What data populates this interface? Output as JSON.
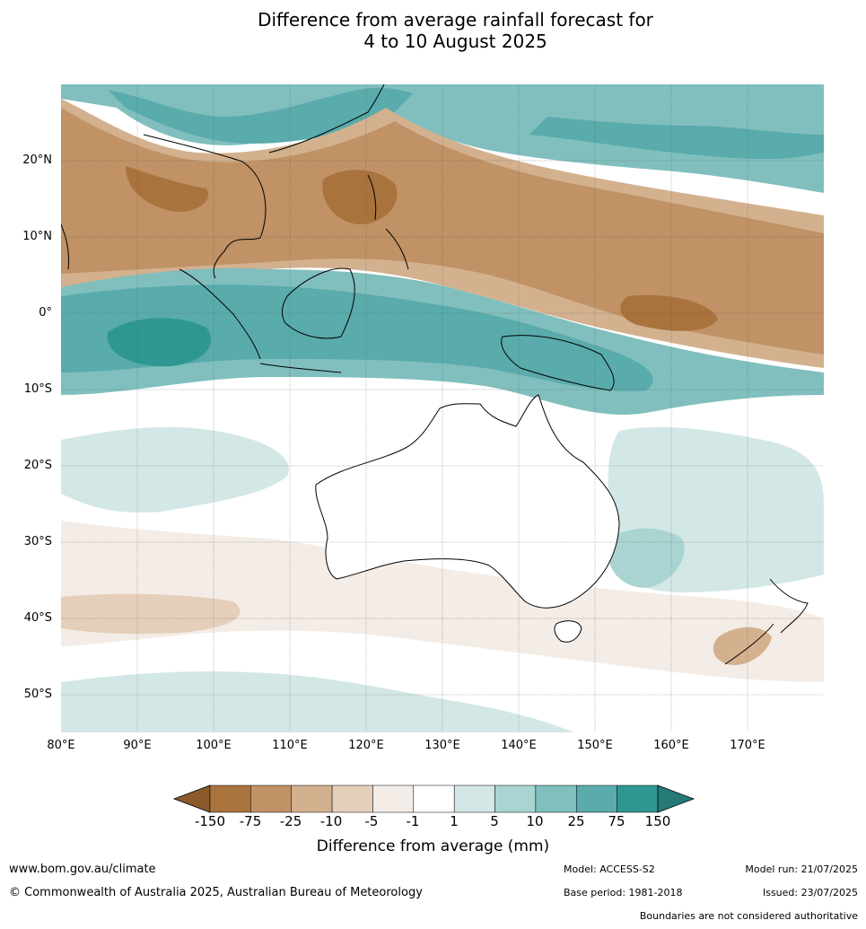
{
  "title_line1": "Difference from average rainfall forecast for",
  "title_line2": "4 to 10 August 2025",
  "map": {
    "lon_range": [
      80,
      180
    ],
    "lat_range": [
      -55,
      30
    ],
    "lat_labels": [
      "20°N",
      "10°N",
      "0°",
      "10°S",
      "20°S",
      "30°S",
      "40°S",
      "50°S"
    ],
    "lat_values": [
      20,
      10,
      0,
      -10,
      -20,
      -30,
      -40,
      -50
    ],
    "lon_labels": [
      "80°E",
      "90°E",
      "100°E",
      "110°E",
      "120°E",
      "130°E",
      "140°E",
      "150°E",
      "160°E",
      "170°E"
    ],
    "lon_values": [
      80,
      90,
      100,
      110,
      120,
      130,
      140,
      150,
      160,
      170
    ]
  },
  "legend": {
    "title": "Difference from average (mm)",
    "ticks": [
      "-150",
      "-75",
      "-25",
      "-10",
      "-5",
      "-1",
      "1",
      "5",
      "10",
      "25",
      "75",
      "150"
    ],
    "colors": [
      "#8a5a2b",
      "#a9733d",
      "#c09265",
      "#d3b18f",
      "#e5cfbb",
      "#f4ece6",
      "#ffffff",
      "#d3e8e6",
      "#a9d4d2",
      "#80bfbd",
      "#5aabab",
      "#2e9791",
      "#257a78"
    ]
  },
  "footer": {
    "website": "www.bom.gov.au/climate",
    "copyright": "© Commonwealth of Australia 2025, Australian Bureau of Meteorology",
    "model": "Model: ACCESS-S2",
    "base_period": "Base period: 1981-2018",
    "model_run": "Model run: 21/07/2025",
    "issued": "Issued: 23/07/2025",
    "disclaimer": "Boundaries are not considered authoritative"
  }
}
